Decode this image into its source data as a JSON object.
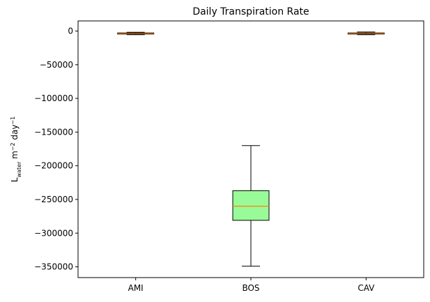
{
  "chart_data": {
    "type": "box",
    "title": "Daily Transpiration Rate",
    "ylabel": {
      "base": "L",
      "base_sub": "water",
      "mid": " m",
      "mid_sup": "−2",
      "tail": " day",
      "tail_sup": "−1"
    },
    "xlabel": "",
    "ylim": [
      -366000,
      15000
    ],
    "yticks": [
      0,
      -50000,
      -100000,
      -150000,
      -200000,
      -250000,
      -300000,
      -350000
    ],
    "ytick_labels": [
      "0",
      "−50000",
      "−100000",
      "−150000",
      "−200000",
      "−250000",
      "−300000",
      "−350000"
    ],
    "categories": [
      "AMI",
      "BOS",
      "CAV"
    ],
    "boxes": [
      {
        "category": "AMI",
        "whisker_low": -5500,
        "q1": -4500,
        "median": -3700,
        "q3": -2800,
        "whisker_high": -1800,
        "color": "#ff7f50"
      },
      {
        "category": "BOS",
        "whisker_low": -349000,
        "q1": -281000,
        "median": -260000,
        "q3": -237000,
        "whisker_high": -170000,
        "color": "#98fb98"
      },
      {
        "category": "CAV",
        "whisker_low": -5500,
        "q1": -4500,
        "median": -3700,
        "q3": -2800,
        "whisker_high": -1500,
        "color": "#ff7f50"
      }
    ],
    "median_color": "#ff7f0e",
    "grid": false
  }
}
